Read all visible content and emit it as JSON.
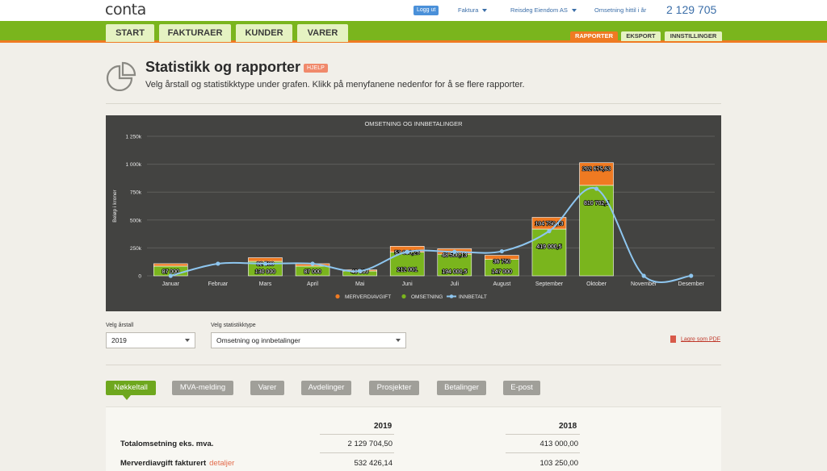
{
  "app": {
    "logo": "conta"
  },
  "topbar": {
    "logout": "Logg ut",
    "menu1": "Faktura",
    "menu2": "Reisdeg Eiendom AS",
    "omsetning_label": "Omsetning hittil i år",
    "omsetning_value": "2 129 705"
  },
  "nav": {
    "tabs": [
      "START",
      "FAKTURAER",
      "KUNDER",
      "VARER"
    ],
    "subtabs": [
      "RAPPORTER",
      "EKSPORT",
      "INNSTILLINGER"
    ]
  },
  "header": {
    "title": "Statistikk og rapporter",
    "help": "HJELP",
    "subtitle": "Velg årstall og statistikktype under grafen. Klikk på menyfanene nedenfor for å se flere rapporter."
  },
  "chart_data": {
    "type": "bar",
    "title": "OMSETNING OG INNBETALINGER",
    "ylabel": "Beløp i kroner",
    "ylim": [
      0,
      1250000
    ],
    "yticks": [
      "0",
      "250k",
      "500k",
      "750k",
      "1 000k",
      "1 250k"
    ],
    "categories": [
      "Januar",
      "Februar",
      "Mars",
      "April",
      "Mai",
      "Juni",
      "Juli",
      "August",
      "September",
      "Oktober",
      "November",
      "Desember"
    ],
    "series": [
      {
        "name": "OMSETNING",
        "values": [
          87000,
          0,
          130000,
          87000,
          43000,
          212001,
          194000.5,
          147000,
          419000.5,
          810702.5,
          0,
          0
        ],
        "labels": [
          "87 000",
          "",
          "130 000",
          "87 000",
          "43 000",
          "212 001",
          "194 000,5",
          "147 000",
          "419 000,5",
          "810 702,5",
          "",
          ""
        ]
      },
      {
        "name": "MERVERDIAVGIFT",
        "values": [
          21750,
          0,
          32500,
          21750,
          10750,
          53000.25,
          48500.13,
          36750,
          104750.13,
          202675.63,
          0,
          0
        ],
        "labels": [
          "",
          "",
          "32 500",
          "",
          "",
          "53 000,25",
          "48 500,13",
          "36 750",
          "104 750,13",
          "202 675,63",
          "",
          ""
        ]
      },
      {
        "name": "INNBETALT",
        "values": [
          0,
          108750,
          108750,
          108750,
          43000,
          215000,
          215000,
          220000,
          400000,
          780000,
          0,
          0
        ]
      }
    ],
    "legend": "bottom-center"
  },
  "controls": {
    "year_label": "Velg årstall",
    "year_value": "2019",
    "type_label": "Velg statistikktype",
    "type_value": "Omsetning og innbetalinger",
    "pdf_label": "Lagre som PDF"
  },
  "report_tabs": [
    "Nøkkeltall",
    "MVA-melding",
    "Varer",
    "Avdelinger",
    "Prosjekter",
    "Betalinger",
    "E-post"
  ],
  "table": {
    "years": [
      "2019",
      "2018"
    ],
    "rows": [
      {
        "label": "Totalomsetning eks. mva.",
        "v2019": "2 129 704,50",
        "v2018": "413 000,00"
      },
      {
        "label": "Merverdiavgift fakturert",
        "link": "detaljer",
        "v2019": "532 426,14",
        "v2018": "103 250,00"
      }
    ]
  },
  "colors": {
    "green": "#7ab51d",
    "orange": "#ef7a22",
    "line": "#8ec6ef",
    "chart_bg": "#434341"
  }
}
